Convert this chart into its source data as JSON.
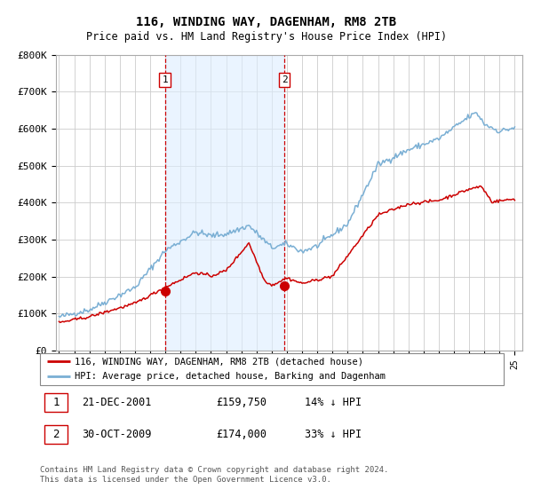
{
  "title": "116, WINDING WAY, DAGENHAM, RM8 2TB",
  "subtitle": "Price paid vs. HM Land Registry's House Price Index (HPI)",
  "ylabel_ticks": [
    "£0",
    "£100K",
    "£200K",
    "£300K",
    "£400K",
    "£500K",
    "£600K",
    "£700K",
    "£800K"
  ],
  "ytick_values": [
    0,
    100000,
    200000,
    300000,
    400000,
    500000,
    600000,
    700000,
    800000
  ],
  "ylim": [
    0,
    800000
  ],
  "x_start_year": 1995,
  "x_end_year": 2025,
  "transaction1": {
    "date": "21-DEC-2001",
    "price": 159750,
    "label": "1",
    "year": 2001.97
  },
  "transaction2": {
    "date": "30-OCT-2009",
    "price": 174000,
    "label": "2",
    "year": 2009.83
  },
  "legend_property": "116, WINDING WAY, DAGENHAM, RM8 2TB (detached house)",
  "legend_hpi": "HPI: Average price, detached house, Barking and Dagenham",
  "footer1": "Contains HM Land Registry data © Crown copyright and database right 2024.",
  "footer2": "This data is licensed under the Open Government Licence v3.0.",
  "table_row1": [
    "1",
    "21-DEC-2001",
    "£159,750",
    "14% ↓ HPI"
  ],
  "table_row2": [
    "2",
    "30-OCT-2009",
    "£174,000",
    "33% ↓ HPI"
  ],
  "property_color": "#cc0000",
  "hpi_color": "#7aafd4",
  "vline_color": "#cc0000",
  "vline_bg_color": "#ddeeff",
  "bg_color": "#ffffff",
  "grid_color": "#cccccc"
}
